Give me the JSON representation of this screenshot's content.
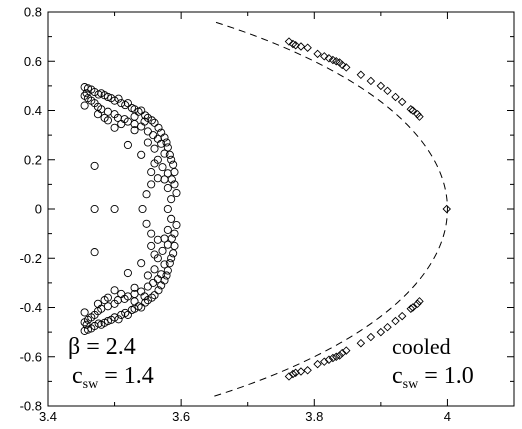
{
  "chart_data": {
    "type": "scatter",
    "title": "",
    "xlabel": "",
    "ylabel": "",
    "xlim": [
      3.4,
      4.1
    ],
    "ylim": [
      -0.8,
      0.8
    ],
    "xticks": [
      "3.4",
      "3.6",
      "3.8",
      "4"
    ],
    "yticks": [
      "-0.8",
      "-0.6",
      "-0.4",
      "-0.2",
      "0",
      "0.2",
      "0.4",
      "0.6",
      "0.8"
    ],
    "grid": false,
    "annotations": {
      "left": {
        "greek": "β",
        "eq1": " = 2.4",
        "c": "c",
        "sub": "sw",
        "eq2": " = 1.4"
      },
      "right": {
        "line1": "cooled",
        "c": "c",
        "sub": "sw",
        "eq2": " = 1.0"
      }
    },
    "series": [
      {
        "marker": "circle",
        "points": [
          [
            3.455,
            0.495
          ],
          [
            3.46,
            0.49
          ],
          [
            3.465,
            0.485
          ],
          [
            3.458,
            0.47
          ],
          [
            3.47,
            0.475
          ],
          [
            3.476,
            0.465
          ],
          [
            3.48,
            0.47
          ],
          [
            3.485,
            0.462
          ],
          [
            3.49,
            0.455
          ],
          [
            3.495,
            0.45
          ],
          [
            3.5,
            0.44
          ],
          [
            3.506,
            0.448
          ],
          [
            3.51,
            0.43
          ],
          [
            3.516,
            0.422
          ],
          [
            3.52,
            0.43
          ],
          [
            3.526,
            0.41
          ],
          [
            3.53,
            0.405
          ],
          [
            3.536,
            0.395
          ],
          [
            3.54,
            0.4
          ],
          [
            3.546,
            0.38
          ],
          [
            3.55,
            0.37
          ],
          [
            3.556,
            0.36
          ],
          [
            3.56,
            0.35
          ],
          [
            3.566,
            0.33
          ],
          [
            3.57,
            0.31
          ],
          [
            3.575,
            0.29
          ],
          [
            3.578,
            0.27
          ],
          [
            3.58,
            0.25
          ],
          [
            3.583,
            0.22
          ],
          [
            3.585,
            0.2
          ],
          [
            3.588,
            0.18
          ],
          [
            3.59,
            0.15
          ],
          [
            3.586,
            0.12
          ],
          [
            3.59,
            0.1
          ],
          [
            3.593,
            0.065
          ],
          [
            3.455,
            0.46
          ],
          [
            3.46,
            0.45
          ],
          [
            3.465,
            0.44
          ],
          [
            3.455,
            0.42
          ],
          [
            3.47,
            0.43
          ],
          [
            3.475,
            0.415
          ],
          [
            3.48,
            0.405
          ],
          [
            3.49,
            0.395
          ],
          [
            3.5,
            0.385
          ],
          [
            3.475,
            0.385
          ],
          [
            3.485,
            0.37
          ],
          [
            3.505,
            0.37
          ],
          [
            3.515,
            0.365
          ],
          [
            3.52,
            0.355
          ],
          [
            3.53,
            0.345
          ],
          [
            3.54,
            0.335
          ],
          [
            3.55,
            0.315
          ],
          [
            3.558,
            0.3
          ],
          [
            3.565,
            0.285
          ],
          [
            3.57,
            0.265
          ],
          [
            3.56,
            0.245
          ],
          [
            3.575,
            0.225
          ],
          [
            3.565,
            0.2
          ],
          [
            3.572,
            0.17
          ],
          [
            3.58,
            0.145
          ],
          [
            3.575,
            0.12
          ],
          [
            3.58,
            0.085
          ],
          [
            3.585,
            0.04
          ],
          [
            3.53,
            0.32
          ],
          [
            3.52,
            0.26
          ],
          [
            3.55,
            0.27
          ],
          [
            3.54,
            0.22
          ],
          [
            3.56,
            0.185
          ],
          [
            3.555,
            0.15
          ],
          [
            3.565,
            0.125
          ],
          [
            3.548,
            0.06
          ],
          [
            3.555,
            0.1
          ],
          [
            3.5,
            0.33
          ],
          [
            3.49,
            0.36
          ],
          [
            3.51,
            0.345
          ],
          [
            3.53,
            0.375
          ],
          [
            3.545,
            0.355
          ],
          [
            3.47,
            0.175
          ],
          [
            3.47,
            0.0
          ],
          [
            3.5,
            0.0
          ],
          [
            3.542,
            0.0
          ],
          [
            3.58,
            0.0
          ],
          [
            3.455,
            -0.495
          ],
          [
            3.46,
            -0.49
          ],
          [
            3.465,
            -0.485
          ],
          [
            3.458,
            -0.47
          ],
          [
            3.47,
            -0.475
          ],
          [
            3.476,
            -0.465
          ],
          [
            3.48,
            -0.47
          ],
          [
            3.485,
            -0.462
          ],
          [
            3.49,
            -0.455
          ],
          [
            3.495,
            -0.45
          ],
          [
            3.5,
            -0.44
          ],
          [
            3.506,
            -0.448
          ],
          [
            3.51,
            -0.43
          ],
          [
            3.516,
            -0.422
          ],
          [
            3.52,
            -0.43
          ],
          [
            3.526,
            -0.41
          ],
          [
            3.53,
            -0.405
          ],
          [
            3.536,
            -0.395
          ],
          [
            3.54,
            -0.4
          ],
          [
            3.546,
            -0.38
          ],
          [
            3.55,
            -0.37
          ],
          [
            3.556,
            -0.36
          ],
          [
            3.56,
            -0.35
          ],
          [
            3.566,
            -0.33
          ],
          [
            3.57,
            -0.31
          ],
          [
            3.575,
            -0.29
          ],
          [
            3.578,
            -0.27
          ],
          [
            3.58,
            -0.25
          ],
          [
            3.583,
            -0.22
          ],
          [
            3.585,
            -0.2
          ],
          [
            3.588,
            -0.18
          ],
          [
            3.59,
            -0.15
          ],
          [
            3.586,
            -0.12
          ],
          [
            3.59,
            -0.1
          ],
          [
            3.593,
            -0.065
          ],
          [
            3.455,
            -0.46
          ],
          [
            3.46,
            -0.45
          ],
          [
            3.465,
            -0.44
          ],
          [
            3.455,
            -0.42
          ],
          [
            3.47,
            -0.43
          ],
          [
            3.475,
            -0.415
          ],
          [
            3.48,
            -0.405
          ],
          [
            3.49,
            -0.395
          ],
          [
            3.5,
            -0.385
          ],
          [
            3.475,
            -0.385
          ],
          [
            3.485,
            -0.37
          ],
          [
            3.505,
            -0.37
          ],
          [
            3.515,
            -0.365
          ],
          [
            3.52,
            -0.355
          ],
          [
            3.53,
            -0.345
          ],
          [
            3.54,
            -0.335
          ],
          [
            3.55,
            -0.315
          ],
          [
            3.558,
            -0.3
          ],
          [
            3.565,
            -0.285
          ],
          [
            3.57,
            -0.265
          ],
          [
            3.56,
            -0.245
          ],
          [
            3.575,
            -0.225
          ],
          [
            3.565,
            -0.2
          ],
          [
            3.572,
            -0.17
          ],
          [
            3.58,
            -0.145
          ],
          [
            3.575,
            -0.12
          ],
          [
            3.58,
            -0.085
          ],
          [
            3.585,
            -0.04
          ],
          [
            3.53,
            -0.32
          ],
          [
            3.52,
            -0.26
          ],
          [
            3.55,
            -0.27
          ],
          [
            3.54,
            -0.22
          ],
          [
            3.56,
            -0.185
          ],
          [
            3.555,
            -0.15
          ],
          [
            3.565,
            -0.125
          ],
          [
            3.548,
            -0.06
          ],
          [
            3.555,
            -0.1
          ],
          [
            3.5,
            -0.33
          ],
          [
            3.49,
            -0.36
          ],
          [
            3.51,
            -0.345
          ],
          [
            3.53,
            -0.375
          ],
          [
            3.545,
            -0.355
          ],
          [
            3.47,
            -0.175
          ]
        ]
      },
      {
        "marker": "diamond",
        "points": [
          [
            3.762,
            0.68
          ],
          [
            3.768,
            0.67
          ],
          [
            3.772,
            0.665
          ],
          [
            3.78,
            0.66
          ],
          [
            3.79,
            0.655
          ],
          [
            3.805,
            0.63
          ],
          [
            3.815,
            0.62
          ],
          [
            3.822,
            0.612
          ],
          [
            3.828,
            0.605
          ],
          [
            3.833,
            0.6
          ],
          [
            3.838,
            0.595
          ],
          [
            3.842,
            0.585
          ],
          [
            3.848,
            0.575
          ],
          [
            3.87,
            0.545
          ],
          [
            3.885,
            0.52
          ],
          [
            3.9,
            0.5
          ],
          [
            3.91,
            0.48
          ],
          [
            3.922,
            0.455
          ],
          [
            3.932,
            0.435
          ],
          [
            3.945,
            0.405
          ],
          [
            3.948,
            0.4
          ],
          [
            3.955,
            0.385
          ],
          [
            3.958,
            0.375
          ],
          [
            3.999,
            0.0
          ],
          [
            3.762,
            -0.68
          ],
          [
            3.768,
            -0.67
          ],
          [
            3.772,
            -0.665
          ],
          [
            3.78,
            -0.66
          ],
          [
            3.79,
            -0.655
          ],
          [
            3.805,
            -0.63
          ],
          [
            3.815,
            -0.62
          ],
          [
            3.822,
            -0.612
          ],
          [
            3.828,
            -0.605
          ],
          [
            3.833,
            -0.6
          ],
          [
            3.838,
            -0.595
          ],
          [
            3.842,
            -0.585
          ],
          [
            3.848,
            -0.575
          ],
          [
            3.87,
            -0.545
          ],
          [
            3.885,
            -0.52
          ],
          [
            3.9,
            -0.5
          ],
          [
            3.91,
            -0.48
          ],
          [
            3.922,
            -0.455
          ],
          [
            3.932,
            -0.435
          ],
          [
            3.945,
            -0.405
          ],
          [
            3.948,
            -0.4
          ],
          [
            3.955,
            -0.385
          ],
          [
            3.958,
            -0.375
          ]
        ]
      }
    ],
    "curve": {
      "style": "dashed",
      "center_x": 3.0,
      "radius": 1.0,
      "y_range": [
        -0.76,
        0.76
      ]
    }
  }
}
